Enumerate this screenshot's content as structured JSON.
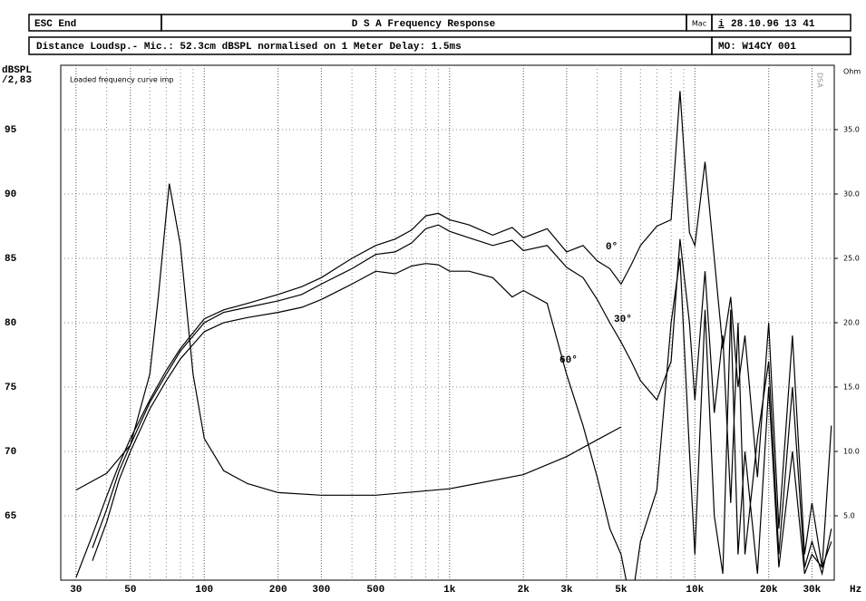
{
  "header": {
    "esc": "ESC End",
    "title": "D S A   Frequency Response",
    "mac": "Mac",
    "info": "i",
    "date": "28.10.96  13 41",
    "subtitle": "Distance Loudsp.- Mic.: 52.3cm dBSPL normalised on 1 Meter  Delay: 1.5ms",
    "model": "MO: W14CY 001"
  },
  "chart_data": {
    "type": "line",
    "ylabel": "dBSPL",
    "ylabel_sub": "/2,83",
    "y2label": "Ohm",
    "xlabel": "Hz",
    "annotation": "Loaded frequency curve imp",
    "watermark": "DSA",
    "log_x": true,
    "grid": true,
    "xlim": [
      26,
      37000
    ],
    "ylim": [
      60,
      100
    ],
    "y2lim": [
      0,
      40
    ],
    "xticks": [
      30,
      50,
      100,
      200,
      300,
      500,
      {
        "value": 1000,
        "label": "1k"
      },
      {
        "value": 2000,
        "label": "2k"
      },
      {
        "value": 3000,
        "label": "3k"
      },
      {
        "value": 5000,
        "label": "5k"
      },
      {
        "value": 10000,
        "label": "10k"
      },
      {
        "value": 20000,
        "label": "20k"
      },
      {
        "value": 30000,
        "label": "30k"
      }
    ],
    "xminorticks": [
      40,
      60,
      70,
      80,
      90,
      400,
      600,
      700,
      800,
      900,
      4000,
      6000,
      7000,
      8000,
      9000
    ],
    "yticks": [
      65,
      70,
      75,
      80,
      85,
      90,
      95
    ],
    "y2ticks": [
      {
        "value": 5,
        "label": "5.0"
      },
      {
        "value": 10,
        "label": "10.0"
      },
      {
        "value": 15,
        "label": "15.0"
      },
      {
        "value": 20,
        "label": "20.0"
      },
      {
        "value": 25,
        "label": "25.0"
      },
      {
        "value": 30,
        "label": "30.0"
      },
      {
        "value": 35,
        "label": "35.0"
      }
    ],
    "x": [
      30,
      35,
      40,
      45,
      50,
      60,
      70,
      80,
      100,
      120,
      150,
      200,
      250,
      300,
      400,
      500,
      600,
      700,
      800,
      900,
      1000,
      1200,
      1500,
      1800,
      2000,
      2500,
      3000,
      3500,
      4000,
      4500,
      5000,
      5500,
      6000,
      7000,
      8000,
      8700,
      9500,
      10000,
      11000,
      12000,
      13000,
      14000,
      15000,
      16000,
      18000,
      20000,
      22000,
      25000,
      28000,
      30000,
      33000,
      36000
    ],
    "series": [
      {
        "name": "0°",
        "color": "#000000",
        "values": [
          60.2,
          63.5,
          66.5,
          69,
          71,
          74,
          76.3,
          78,
          80.3,
          81,
          81.5,
          82.2,
          82.8,
          83.5,
          85,
          86,
          86.5,
          87.2,
          88.3,
          88.5,
          88,
          87.6,
          86.8,
          87.4,
          86.6,
          87.3,
          85.5,
          86,
          84.8,
          84.2,
          83,
          84.5,
          86,
          87.5,
          88,
          98,
          87,
          86,
          92.5,
          85,
          78,
          82,
          75,
          79,
          68,
          80,
          64,
          79,
          62,
          66,
          61,
          72
        ]
      },
      {
        "name": "30°",
        "color": "#000000",
        "values": [
          null,
          62.5,
          65.5,
          68.5,
          70.5,
          73.8,
          76,
          77.8,
          80,
          80.8,
          81.2,
          81.7,
          82.2,
          83,
          84.2,
          85.3,
          85.5,
          86.2,
          87.3,
          87.6,
          87.1,
          86.6,
          86,
          86.4,
          85.6,
          86,
          84.3,
          83.5,
          81.8,
          80,
          78.5,
          77,
          75.5,
          74,
          77,
          86.5,
          80,
          74,
          84,
          73,
          79,
          66,
          80,
          62,
          71,
          77,
          62,
          75,
          61,
          63,
          60.5,
          64
        ]
      },
      {
        "name": "60°",
        "color": "#000000",
        "values": [
          null,
          61.5,
          64.5,
          67.8,
          70,
          73.3,
          75.5,
          77.2,
          79.3,
          80,
          80.4,
          80.8,
          81.2,
          81.8,
          83,
          84,
          83.8,
          84.4,
          84.6,
          84.5,
          84,
          84,
          83.5,
          82,
          82.5,
          81.5,
          76,
          72,
          68,
          64,
          62,
          58,
          63,
          67,
          80,
          85,
          70,
          62,
          81,
          65,
          60.5,
          81,
          62,
          70,
          60.5,
          75,
          61,
          70,
          60.5,
          62,
          61,
          63
        ]
      },
      {
        "color": "#000000",
        "axis": "y2",
        "x": [
          30,
          40,
          50,
          60,
          65,
          70,
          72,
          80,
          90,
          100,
          120,
          150,
          200,
          300,
          500,
          1000,
          2000,
          3000,
          4000,
          5000
        ],
        "values": [
          7,
          8.3,
          10.5,
          16,
          22,
          28.5,
          30.8,
          26,
          16,
          11,
          8.5,
          7.5,
          6.8,
          6.6,
          6.6,
          7.1,
          8.2,
          9.6,
          10.9,
          11.9
        ]
      }
    ]
  }
}
